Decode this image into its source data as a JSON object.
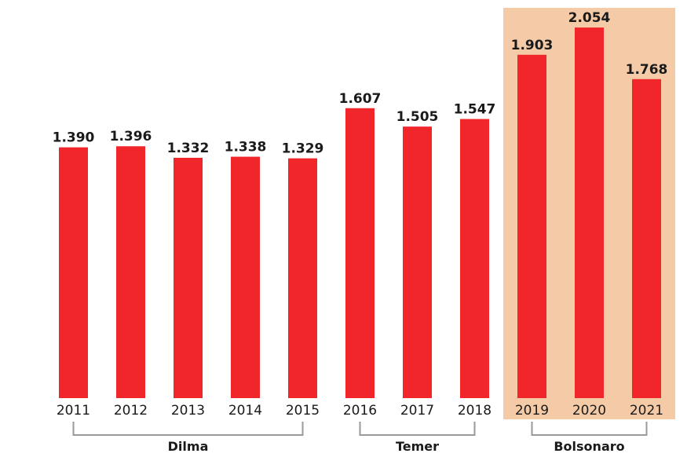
{
  "chart_data": {
    "type": "bar",
    "categories": [
      "2011",
      "2012",
      "2013",
      "2014",
      "2015",
      "2016",
      "2017",
      "2018",
      "2019",
      "2020",
      "2021"
    ],
    "values": [
      1390,
      1396,
      1332,
      1338,
      1329,
      1607,
      1505,
      1547,
      1903,
      2054,
      1768
    ],
    "value_labels": [
      "1.390",
      "1.396",
      "1.332",
      "1.338",
      "1.329",
      "1.607",
      "1.505",
      "1.547",
      "1.903",
      "2.054",
      "1.768"
    ],
    "ylim": [
      0,
      2150
    ],
    "grid": false,
    "bar_color": "#f0262b",
    "groups": [
      {
        "label": "Dilma",
        "from": 0,
        "to": 4
      },
      {
        "label": "Temer",
        "from": 5,
        "to": 7
      },
      {
        "label": "Bolsonaro",
        "from": 8,
        "to": 10,
        "highlight": true
      }
    ],
    "highlight_color": "#f5cba7"
  }
}
